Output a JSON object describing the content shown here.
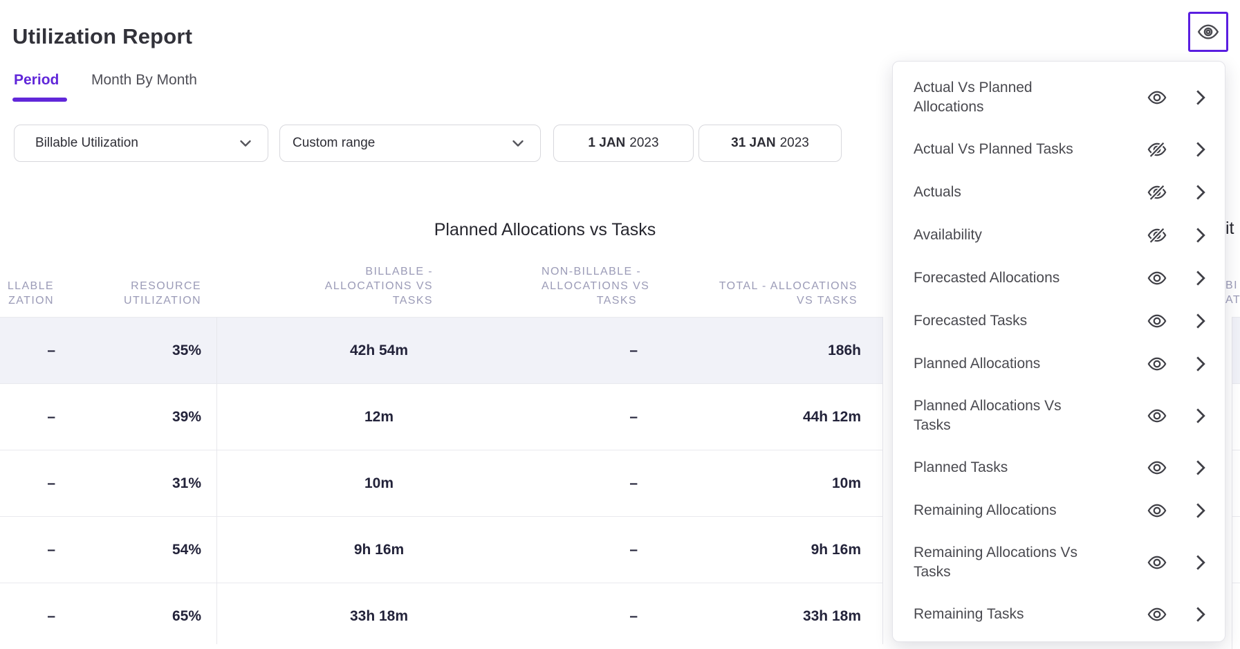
{
  "page": {
    "title": "Utilization Report"
  },
  "tabs": [
    {
      "label": "Period",
      "active": true
    },
    {
      "label": "Month By Month",
      "active": false
    }
  ],
  "filters": {
    "metric_select": {
      "value": "Billable Utilization"
    },
    "range_select": {
      "value": "Custom range"
    },
    "start_date": {
      "day_month": "1 JAN",
      "year": "2023"
    },
    "end_date": {
      "day_month": "31 JAN",
      "year": "2023"
    }
  },
  "table": {
    "title": "Planned Allocations vs Tasks",
    "columns": [
      {
        "id": "billable-utilization-clipped",
        "lines": [
          "LLABLE",
          "ZATION"
        ]
      },
      {
        "id": "resource-utilization",
        "lines": [
          "RESOURCE",
          "UTILIZATION"
        ]
      },
      {
        "id": "billable-allocations-vs-tasks",
        "lines": [
          "BILLABLE -",
          "ALLOCATIONS VS",
          "TASKS"
        ]
      },
      {
        "id": "non-billable-allocations-vs-tasks",
        "lines": [
          "NON-BILLABLE -",
          "ALLOCATIONS VS",
          "TASKS"
        ]
      },
      {
        "id": "total-allocations-vs-tasks",
        "lines": [
          "TOTAL - ALLOCATIONS",
          "VS TASKS"
        ]
      }
    ],
    "rows": [
      [
        "–",
        "35%",
        "42h 54m",
        "–",
        "186h"
      ],
      [
        "–",
        "39%",
        "12m",
        "–",
        "44h 12m"
      ],
      [
        "–",
        "31%",
        "10m",
        "–",
        "10m"
      ],
      [
        "–",
        "54%",
        "9h 16m",
        "–",
        "9h 16m"
      ],
      [
        "–",
        "65%",
        "33h 18m",
        "–",
        "33h 18m"
      ]
    ]
  },
  "visibility_menu": {
    "trigger_icon": "eye-icon",
    "items": [
      {
        "label": "Actual Vs Planned Allocations",
        "visible": true
      },
      {
        "label": "Actual Vs Planned Tasks",
        "visible": false
      },
      {
        "label": "Actuals",
        "visible": false
      },
      {
        "label": "Availability",
        "visible": false
      },
      {
        "label": "Forecasted Allocations",
        "visible": true
      },
      {
        "label": "Forecasted Tasks",
        "visible": true
      },
      {
        "label": "Planned Allocations",
        "visible": true
      },
      {
        "label": "Planned Allocations Vs Tasks",
        "visible": true
      },
      {
        "label": "Planned Tasks",
        "visible": true
      },
      {
        "label": "Remaining Allocations",
        "visible": true
      },
      {
        "label": "Remaining Allocations Vs Tasks",
        "visible": true
      },
      {
        "label": "Remaining Tasks",
        "visible": true
      }
    ]
  },
  "right_edge_fragments": {
    "title_fragment": "it",
    "header_fragment_lines": [
      "BI",
      "ATI"
    ]
  },
  "colors": {
    "accent_purple": "#6127D9",
    "button_border_purple": "#5A1EE0",
    "table_header_text": "#9B9BB7",
    "row_alt_background": "#F1F2F8",
    "icon_gray": "#3F3F46"
  }
}
